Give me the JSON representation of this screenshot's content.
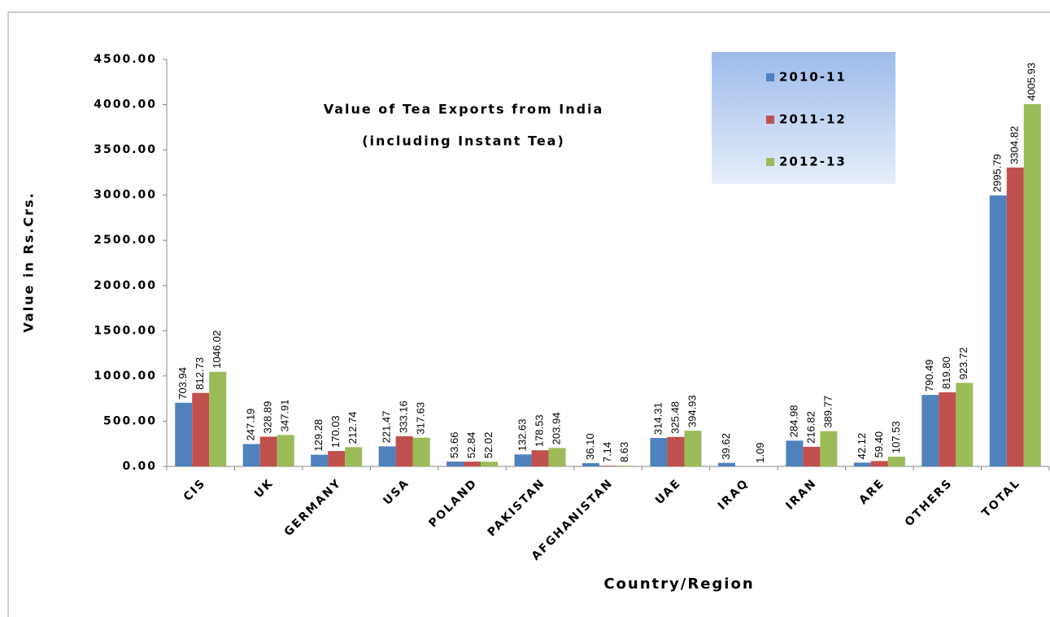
{
  "chart_data": {
    "type": "bar",
    "title": "Value of Tea Exports from India",
    "subtitle": "(including Instant Tea)",
    "x_label": "Country/Region",
    "y_label": "Value in Rs.Crs.",
    "categories": [
      "CIS",
      "UK",
      "GERMANY",
      "USA",
      "POLAND",
      "PAKISTAN",
      "AFGHANISTAN",
      "UAE",
      "IRAQ",
      "IRAN",
      "ARE",
      "OTHERS",
      "TOTAL"
    ],
    "series": [
      {
        "name": "2010-11",
        "color": "#4f81bd",
        "values": [
          703.94,
          247.19,
          129.28,
          221.47,
          53.66,
          132.63,
          36.1,
          314.31,
          39.62,
          284.98,
          42.12,
          790.49,
          2995.79
        ],
        "value_labels": [
          "703.94",
          "247.19",
          "129.28",
          "221.47",
          "53.66",
          "132.63",
          "36.10",
          "314.31",
          "39.62",
          "284.98",
          "42.12",
          "790.49",
          "2995.79"
        ]
      },
      {
        "name": "2011-12",
        "color": "#c0504d",
        "values": [
          812.73,
          328.89,
          170.03,
          333.16,
          52.84,
          178.53,
          7.14,
          325.48,
          null,
          216.82,
          59.4,
          819.8,
          3304.82
        ],
        "value_labels": [
          "812.73",
          "328.89",
          "170.03",
          "333.16",
          "52.84",
          "178.53",
          "7.14",
          "325.48",
          null,
          "216.82",
          "59.40",
          "819.80",
          "3304.82"
        ]
      },
      {
        "name": "2012-13",
        "color": "#9bbb59",
        "values": [
          1046.02,
          347.91,
          212.74,
          317.63,
          52.02,
          203.94,
          8.63,
          394.93,
          1.09,
          389.77,
          107.53,
          923.72,
          4005.93
        ],
        "value_labels": [
          "1046.02",
          "347.91",
          "212.74",
          "317.63",
          "52.02",
          "203.94",
          "8.63",
          "394.93",
          "1.09",
          "389.77",
          "107.53",
          "923.72",
          "4005.93"
        ]
      }
    ],
    "ylim": [
      0,
      4500
    ],
    "yticks": [
      {
        "value": 0,
        "label": "0.00"
      },
      {
        "value": 500,
        "label": "500.00"
      },
      {
        "value": 1000,
        "label": "1000.00"
      },
      {
        "value": 1500,
        "label": "1500.00"
      },
      {
        "value": 2000,
        "label": "2000.00"
      },
      {
        "value": 2500,
        "label": "2500.00"
      },
      {
        "value": 3000,
        "label": "3000.00"
      },
      {
        "value": 3500,
        "label": "3500.00"
      },
      {
        "value": 4000,
        "label": "4000.00"
      },
      {
        "value": 4500,
        "label": "4500.00"
      }
    ],
    "grid": false,
    "legend": "top-right"
  }
}
